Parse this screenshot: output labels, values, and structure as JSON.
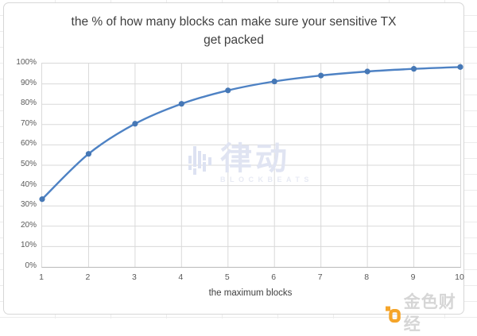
{
  "chart_data": {
    "type": "line",
    "title": "the % of how many blocks can make sure your sensitive TX get packed",
    "title_lines": [
      "the % of how many blocks can make sure your sensitive TX",
      "get packed"
    ],
    "xlabel": "the maximum blocks",
    "ylabel": "",
    "x": [
      1,
      2,
      3,
      4,
      5,
      6,
      7,
      8,
      9,
      10
    ],
    "values": [
      33.3,
      55.6,
      70.4,
      80.2,
      86.8,
      91.2,
      94.1,
      96.1,
      97.4,
      98.3
    ],
    "unit": "%",
    "ylim": [
      0,
      100
    ],
    "ytick_step": 10,
    "ytick_labels": [
      "0%",
      "10%",
      "20%",
      "30%",
      "40%",
      "50%",
      "60%",
      "70%",
      "80%",
      "90%",
      "100%"
    ],
    "xtick_labels": [
      "1",
      "2",
      "3",
      "4",
      "5",
      "6",
      "7",
      "8",
      "9",
      "10"
    ],
    "grid": true,
    "legend": "none",
    "smooth": true,
    "markers": true
  },
  "colors": {
    "line": "#4e82c4",
    "marker": "#4678b6",
    "grid": "#d9d9d9",
    "axis_line": "#b9b9b9",
    "title_text": "#3f3f3f",
    "tick_text": "#595959",
    "frame_border": "#d7d7d7",
    "watermark": "#dfe3f2",
    "logo_orange": "#f5a52a",
    "logo_text": "#d6d6d6"
  },
  "watermark": {
    "cjk": "律动",
    "latin": "BLOCKBEATS"
  },
  "logo": {
    "text": "金色财经"
  }
}
